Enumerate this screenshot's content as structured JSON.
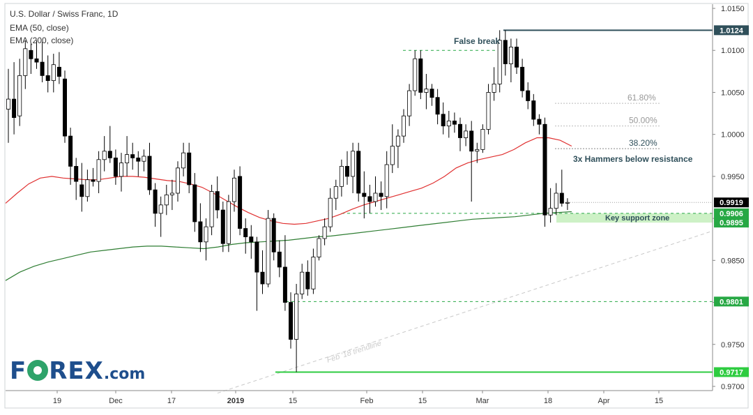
{
  "header": {
    "symbol_line": "U.S. Dollar / Swiss Franc, 1D",
    "ema50_line": "EMA (50, close)",
    "ema200_line": "EMA (200, close)"
  },
  "logo": {
    "part1": "F",
    "part2": "REX",
    "suffix": ".com"
  },
  "colors": {
    "ema50": "#e03030",
    "ema200": "#2e7d32",
    "support_level": "#2ecc40",
    "dashed_green": "#27a844",
    "resistance": "#2f4f5a",
    "zone_fill": "#c8f0c0",
    "annotation_text": "#2f4f5a",
    "fib_text": "#999999"
  },
  "chart_data": {
    "type": "candlestick",
    "title": "U.S. Dollar / Swiss Franc, 1D",
    "ylim": [
      0.9695,
      1.0155
    ],
    "x_ticks": [
      "19",
      "Dec",
      "17",
      "2019",
      "15",
      "Feb",
      "15",
      "Mar",
      "18",
      "Apr",
      "15"
    ],
    "y_ticks": [
      "1.0150",
      "1.0100",
      "1.0050",
      "1.0000",
      "0.9950",
      "0.9900",
      "0.9850",
      "0.9800",
      "0.9750",
      "0.9700"
    ],
    "y_tick_values": [
      1.015,
      1.01,
      1.005,
      1.0,
      0.995,
      0.99,
      0.985,
      0.98,
      0.975,
      0.97
    ],
    "price_labels": [
      {
        "text": "1.0124",
        "value": 1.0124,
        "color": "#2f4f5a"
      },
      {
        "text": "0.9919",
        "value": 0.9919,
        "color": "#000000"
      },
      {
        "text": "0.9906",
        "value": 0.9906,
        "color": "#27a844"
      },
      {
        "text": "0.9895",
        "value": 0.9895,
        "color": "#27a844"
      },
      {
        "text": "0.9801",
        "value": 0.9801,
        "color": "#27a844"
      },
      {
        "text": "0.9717",
        "value": 0.9717,
        "color": "#2ecc40"
      }
    ],
    "annotations": {
      "false_break": "False break",
      "hammers": "3x Hammers below resistance",
      "support_zone": "Key support zone",
      "trendline": "Feb '18 trendline",
      "fib_618": "61.80%",
      "fib_500": "50.00%",
      "fib_382": "38.20%"
    },
    "levels": {
      "resistance": 1.0124,
      "false_break_high": 1.01,
      "fib_618": 1.0037,
      "fib_500": 1.001,
      "fib_382": 0.9983,
      "support_top": 0.9906,
      "support_bottom": 0.9895,
      "low_9801": 0.9801,
      "low_9717": 0.9717
    },
    "trendline": {
      "start_value": 0.9692,
      "end_value": 0.9885
    },
    "candles": [
      [
        1.003,
        1.0078,
        0.999,
        1.0042
      ],
      [
        1.0042,
        1.0086,
        1.0,
        1.002
      ],
      [
        1.0022,
        1.009,
        1.001,
        1.007
      ],
      [
        1.007,
        1.0112,
        1.0054,
        1.0102
      ],
      [
        1.01,
        1.0108,
        1.0072,
        1.009
      ],
      [
        1.009,
        1.0112,
        1.0078,
        1.0086
      ],
      [
        1.0086,
        1.011,
        1.0062,
        1.007
      ],
      [
        1.007,
        1.0094,
        1.005,
        1.0064
      ],
      [
        1.0064,
        1.0096,
        1.005,
        1.0083
      ],
      [
        1.008,
        1.0098,
        1.006,
        1.0069
      ],
      [
        1.0066,
        1.0076,
        0.999,
        0.9998
      ],
      [
        0.9998,
        1.0008,
        0.994,
        0.9962
      ],
      [
        0.9962,
        0.9972,
        0.9922,
        0.9944
      ],
      [
        0.994,
        0.9966,
        0.9908,
        0.9926
      ],
      [
        0.9926,
        0.9958,
        0.992,
        0.9946
      ],
      [
        0.9946,
        0.996,
        0.9938,
        0.9944
      ],
      [
        0.9944,
        0.998,
        0.993,
        0.997
      ],
      [
        0.997,
        0.9998,
        0.9956,
        0.998
      ],
      [
        0.998,
        1.001,
        0.9966,
        0.9972
      ],
      [
        0.9972,
        0.9982,
        0.994,
        0.995
      ],
      [
        0.995,
        0.9978,
        0.9932,
        0.9966
      ],
      [
        0.9966,
        0.9998,
        0.995,
        0.9976
      ],
      [
        0.9976,
        0.999,
        0.9958,
        0.9972
      ],
      [
        0.9972,
        0.998,
        0.995,
        0.9968
      ],
      [
        0.9968,
        0.9982,
        0.9956,
        0.9974
      ],
      [
        0.9974,
        0.999,
        0.9928,
        0.9934
      ],
      [
        0.9934,
        0.9942,
        0.989,
        0.9906
      ],
      [
        0.9906,
        0.9926,
        0.9878,
        0.9916
      ],
      [
        0.9916,
        0.994,
        0.9904,
        0.9928
      ],
      [
        0.9928,
        0.9946,
        0.991,
        0.993
      ],
      [
        0.993,
        0.9968,
        0.992,
        0.996
      ],
      [
        0.996,
        0.999,
        0.995,
        0.9978
      ],
      [
        0.9978,
        0.999,
        0.993,
        0.994
      ],
      [
        0.994,
        0.9954,
        0.9884,
        0.9896
      ],
      [
        0.9896,
        0.9918,
        0.986,
        0.9872
      ],
      [
        0.9872,
        0.99,
        0.985,
        0.989
      ],
      [
        0.989,
        0.994,
        0.988,
        0.9932
      ],
      [
        0.9932,
        0.995,
        0.99,
        0.991
      ],
      [
        0.991,
        0.992,
        0.986,
        0.987
      ],
      [
        0.987,
        0.9928,
        0.986,
        0.992
      ],
      [
        0.992,
        0.9958,
        0.9908,
        0.9948
      ],
      [
        0.995,
        0.9962,
        0.988,
        0.9888
      ],
      [
        0.9888,
        0.99,
        0.9858,
        0.9878
      ],
      [
        0.9878,
        0.9892,
        0.9852,
        0.9872
      ],
      [
        0.9872,
        0.9878,
        0.979,
        0.9836
      ],
      [
        0.9836,
        0.9862,
        0.981,
        0.9822
      ],
      [
        0.9822,
        0.991,
        0.9818,
        0.99
      ],
      [
        0.99,
        0.9906,
        0.985,
        0.986
      ],
      [
        0.986,
        0.9874,
        0.983,
        0.9842
      ],
      [
        0.9842,
        0.988,
        0.979,
        0.98
      ],
      [
        0.98,
        0.9812,
        0.9745,
        0.9756
      ],
      [
        0.9756,
        0.9822,
        0.9717,
        0.981
      ],
      [
        0.981,
        0.9846,
        0.9804,
        0.9836
      ],
      [
        0.9836,
        0.985,
        0.9808,
        0.9816
      ],
      [
        0.9816,
        0.9864,
        0.981,
        0.9854
      ],
      [
        0.9854,
        0.988,
        0.985,
        0.9876
      ],
      [
        0.9876,
        0.99,
        0.9868,
        0.989
      ],
      [
        0.989,
        0.9936,
        0.9884,
        0.9924
      ],
      [
        0.9924,
        0.9946,
        0.991,
        0.9938
      ],
      [
        0.9938,
        0.997,
        0.9926,
        0.9962
      ],
      [
        0.9962,
        0.998,
        0.994,
        0.995
      ],
      [
        0.995,
        0.999,
        0.993,
        0.998
      ],
      [
        0.998,
        0.999,
        0.992,
        0.993
      ],
      [
        0.993,
        0.9956,
        0.99,
        0.9926
      ],
      [
        0.9926,
        0.994,
        0.9906,
        0.992
      ],
      [
        0.992,
        0.995,
        0.9914,
        0.993
      ],
      [
        0.993,
        0.9944,
        0.991,
        0.9926
      ],
      [
        0.9926,
        0.998,
        0.9912,
        0.9964
      ],
      [
        0.9964,
        1.0012,
        0.9954,
        0.9986
      ],
      [
        0.9986,
        1.0006,
        0.996,
        0.9998
      ],
      [
        0.9998,
        1.003,
        0.999,
        1.0022
      ],
      [
        1.0022,
        1.006,
        1.001,
        1.0052
      ],
      [
        1.0052,
        1.01,
        1.0046,
        1.009
      ],
      [
        1.009,
        1.01,
        1.0042,
        1.005
      ],
      [
        1.005,
        1.0072,
        1.003,
        1.0054
      ],
      [
        1.0054,
        1.006,
        1.0034,
        1.0044
      ],
      [
        1.0044,
        1.0054,
        1.0012,
        1.0024
      ],
      [
        1.0024,
        1.0038,
        1.0,
        1.001
      ],
      [
        1.001,
        1.0028,
        0.9996,
        1.0016
      ],
      [
        1.0016,
        1.0026,
        1.0002,
        1.0012
      ],
      [
        1.0012,
        1.002,
        0.998,
        0.9996
      ],
      [
        0.9996,
        1.0012,
        0.9986,
        1.0004
      ],
      [
        1.0004,
        1.0016,
        0.992,
        0.998
      ],
      [
        0.998,
        0.999,
        0.9966,
        0.9982
      ],
      [
        0.9982,
        1.0012,
        0.9978,
        1.0006
      ],
      [
        1.0006,
        1.006,
        1.0,
        1.005
      ],
      [
        1.005,
        1.008,
        1.004,
        1.006
      ],
      [
        1.006,
        1.0124,
        1.005,
        1.0112
      ],
      [
        1.0112,
        1.0124,
        1.007,
        1.0084
      ],
      [
        1.0084,
        1.0114,
        1.0062,
        1.0104
      ],
      [
        1.0104,
        1.0114,
        1.0072,
        1.008
      ],
      [
        1.008,
        1.009,
        1.0044,
        1.0052
      ],
      [
        1.0052,
        1.0062,
        1.003,
        1.004
      ],
      [
        1.004,
        1.0048,
        1.001,
        1.0018
      ],
      [
        1.0018,
        1.0024,
        1.0,
        1.0012
      ],
      [
        1.0012,
        1.002,
        0.989,
        0.9904
      ],
      [
        0.9904,
        0.9936,
        0.9895,
        0.9912
      ],
      [
        0.9912,
        0.9942,
        0.9904,
        0.993
      ],
      [
        0.993,
        0.9958,
        0.9914,
        0.9918
      ],
      [
        0.9918,
        0.9924,
        0.991,
        0.9919
      ]
    ],
    "ema50": [
      0.9918,
      0.993,
      0.9941,
      0.9948,
      0.995,
      0.9948,
      0.9947,
      0.9946,
      0.9946,
      0.9948,
      0.995,
      0.995,
      0.9949,
      0.9947,
      0.9945,
      0.9944,
      0.9941,
      0.9937,
      0.993,
      0.9922,
      0.9914,
      0.9907,
      0.9901,
      0.9897,
      0.9894,
      0.9893,
      0.9894,
      0.9897,
      0.99,
      0.9905,
      0.9911,
      0.9916,
      0.992,
      0.9924,
      0.9928,
      0.9932,
      0.9936,
      0.9942,
      0.995,
      0.996,
      0.9966,
      0.997,
      0.9973,
      0.9976,
      0.9982,
      0.999,
      0.9996,
      0.9996,
      0.9993,
      0.9986
    ],
    "ema200": [
      0.9826,
      0.9836,
      0.9843,
      0.9848,
      0.9852,
      0.9856,
      0.986,
      0.9862,
      0.9864,
      0.9866,
      0.9867,
      0.9867,
      0.9866,
      0.9865,
      0.9864,
      0.9866,
      0.9869,
      0.9871,
      0.9872,
      0.9873,
      0.9874,
      0.9876,
      0.9878,
      0.9879,
      0.9881,
      0.9883,
      0.9885,
      0.9887,
      0.9889,
      0.9891,
      0.9893,
      0.9895,
      0.9897,
      0.9899,
      0.99,
      0.9901,
      0.9902,
      0.9904,
      0.9906,
      0.9907,
      0.9908
    ]
  }
}
